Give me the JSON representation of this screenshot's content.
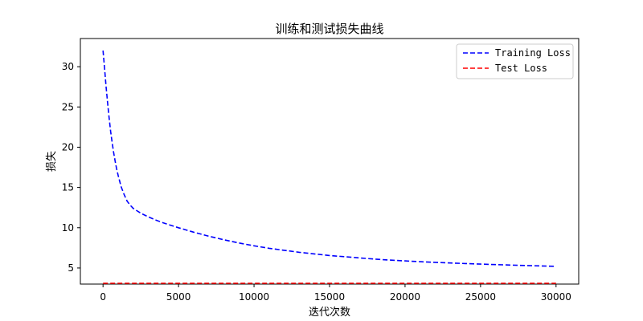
{
  "chart_data": {
    "type": "line",
    "title": "训练和测试损失曲线",
    "xlabel": "迭代次数",
    "ylabel": "损失",
    "xlim": [
      -1500,
      31500
    ],
    "ylim": [
      3.0,
      33.5
    ],
    "xticks": [
      0,
      5000,
      10000,
      15000,
      20000,
      25000,
      30000
    ],
    "yticks": [
      5,
      10,
      15,
      20,
      25,
      30
    ],
    "grid": false,
    "legend_position": "top-right",
    "series": [
      {
        "name": "Training Loss",
        "color": "#0000ff",
        "style": "dashed",
        "x": [
          0,
          100,
          200,
          300,
          400,
          500,
          600,
          700,
          800,
          900,
          1000,
          1200,
          1400,
          1600,
          1800,
          2000,
          2500,
          3000,
          3500,
          4000,
          5000,
          6000,
          7000,
          8000,
          9000,
          10000,
          11000,
          12000,
          13000,
          14000,
          15000,
          16000,
          17000,
          18000,
          19000,
          20000,
          21000,
          22000,
          23000,
          24000,
          25000,
          26000,
          27000,
          28000,
          29000,
          30000
        ],
        "y": [
          32.0,
          29.8,
          27.6,
          25.6,
          23.7,
          22.0,
          20.6,
          19.4,
          18.3,
          17.3,
          16.5,
          15.1,
          14.1,
          13.3,
          12.8,
          12.4,
          11.8,
          11.35,
          10.95,
          10.6,
          10.0,
          9.45,
          8.95,
          8.5,
          8.1,
          7.75,
          7.45,
          7.2,
          6.95,
          6.75,
          6.55,
          6.4,
          6.25,
          6.1,
          5.98,
          5.88,
          5.78,
          5.7,
          5.62,
          5.55,
          5.48,
          5.42,
          5.36,
          5.3,
          5.25,
          5.2
        ]
      },
      {
        "name": "Test Loss",
        "color": "#ff0000",
        "style": "dashed",
        "x": [
          0,
          30000
        ],
        "y": [
          3.1,
          3.1
        ]
      }
    ]
  }
}
